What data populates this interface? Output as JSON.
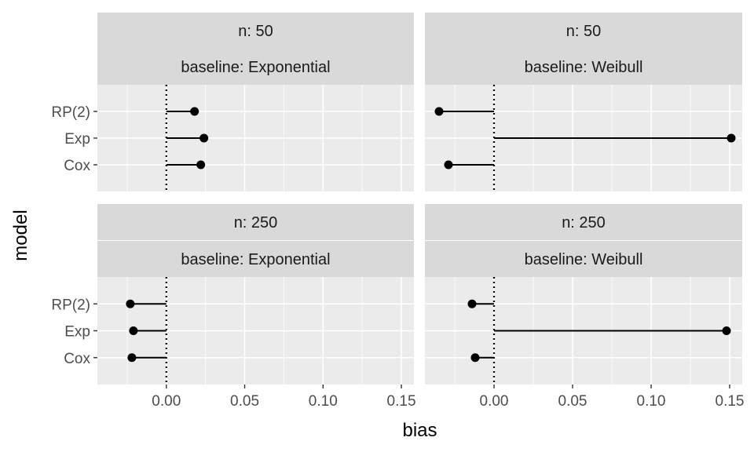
{
  "chart_data": {
    "type": "dot-segment",
    "xlabel": "bias",
    "ylabel": "model",
    "xlim": [
      -0.044,
      0.158
    ],
    "xticks": [
      0.0,
      0.05,
      0.1,
      0.15
    ],
    "xtick_labels": [
      "0.00",
      "0.05",
      "0.10",
      "0.15"
    ],
    "categories": [
      "RP(2)",
      "Exp",
      "Cox"
    ],
    "reference_line": 0,
    "panels": [
      {
        "strip_top": "n: 50",
        "strip_bottom": "baseline: Exponential",
        "values": {
          "RP(2)": 0.018,
          "Exp": 0.024,
          "Cox": 0.022
        }
      },
      {
        "strip_top": "n: 50",
        "strip_bottom": "baseline: Weibull",
        "values": {
          "RP(2)": -0.035,
          "Exp": 0.151,
          "Cox": -0.029
        }
      },
      {
        "strip_top": "n: 250",
        "strip_bottom": "baseline: Exponential",
        "values": {
          "RP(2)": -0.023,
          "Exp": -0.021,
          "Cox": -0.022
        }
      },
      {
        "strip_top": "n: 250",
        "strip_bottom": "baseline: Weibull",
        "values": {
          "RP(2)": -0.014,
          "Exp": 0.148,
          "Cox": -0.012
        }
      }
    ]
  }
}
